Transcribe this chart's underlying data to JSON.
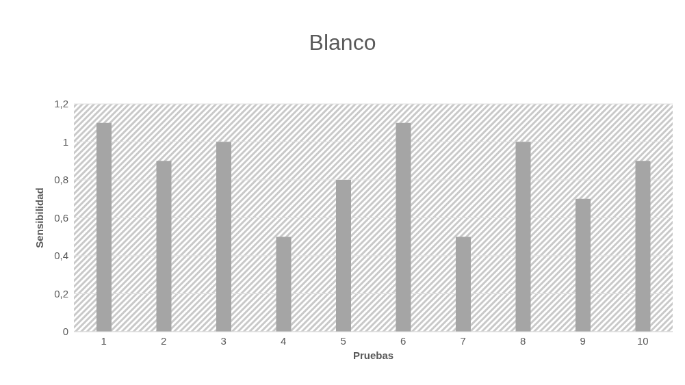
{
  "chart_data": {
    "type": "bar",
    "title": "Blanco",
    "xlabel": "Pruebas",
    "ylabel": "Sensibilidad",
    "categories": [
      "1",
      "2",
      "3",
      "4",
      "5",
      "6",
      "7",
      "8",
      "9",
      "10"
    ],
    "values": [
      1.1,
      0.9,
      1,
      0.5,
      0.8,
      1.1,
      0.5,
      1,
      0.7,
      0.9
    ],
    "color": "#a5a5a5",
    "ylim": [
      0,
      1.2
    ],
    "yticks": [
      0,
      {
        "value": 0.2,
        "label": "0,2"
      },
      {
        "value": 0.4,
        "label": "0,4"
      },
      {
        "value": 0.6,
        "label": "0,6"
      },
      {
        "value": 0.8,
        "label": "0,8"
      },
      1,
      {
        "value": 1.2,
        "label": "1,2"
      }
    ],
    "grid": "y"
  }
}
